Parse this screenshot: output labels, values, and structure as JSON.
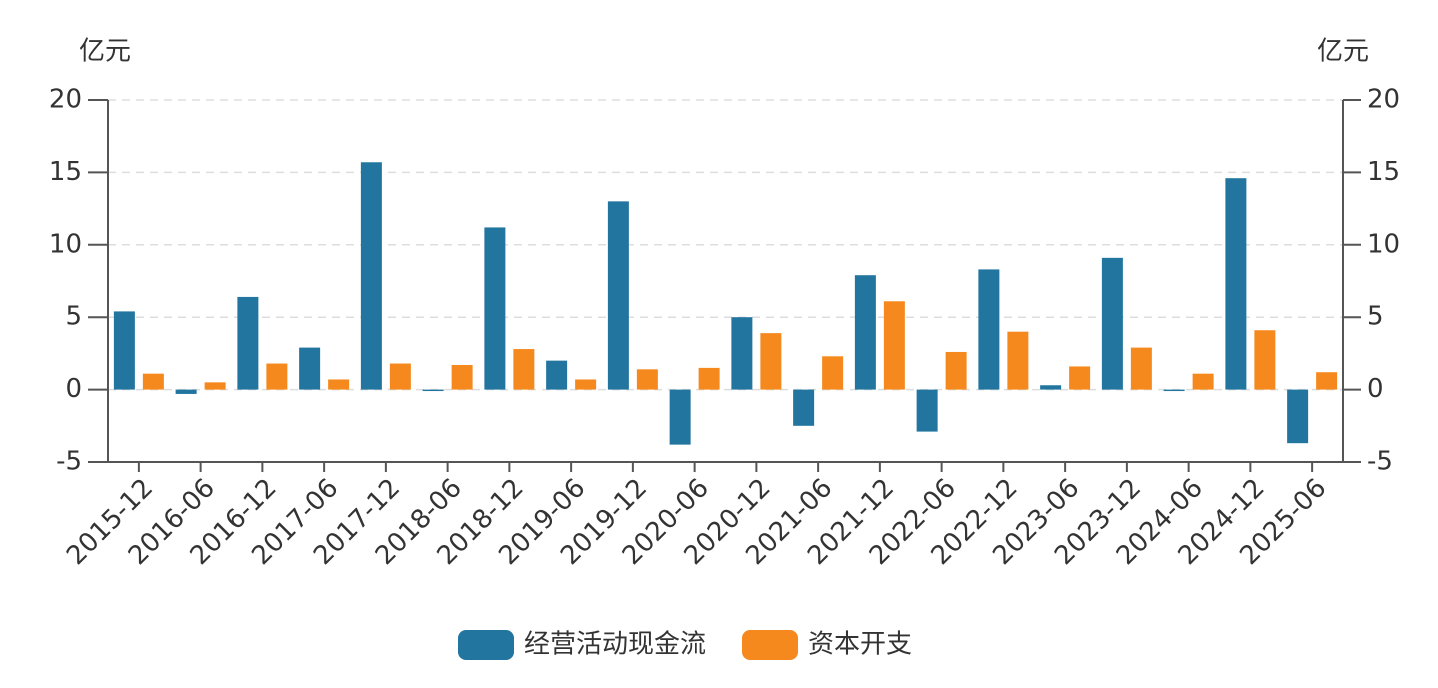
{
  "chart_data": {
    "type": "bar",
    "y_label": "亿元",
    "y2_label": "亿元",
    "categories": [
      "2015-12",
      "2016-06",
      "2016-12",
      "2017-06",
      "2017-12",
      "2018-06",
      "2018-12",
      "2019-06",
      "2019-12",
      "2020-06",
      "2020-12",
      "2021-06",
      "2021-12",
      "2022-06",
      "2022-12",
      "2023-06",
      "2023-12",
      "2024-06",
      "2024-12",
      "2025-06"
    ],
    "series": [
      {
        "name": "经营活动现金流",
        "color": "#21759f",
        "values": [
          5.4,
          -0.3,
          6.4,
          2.9,
          15.7,
          -0.1,
          11.2,
          2.0,
          13.0,
          -3.8,
          5.0,
          -2.5,
          7.9,
          -2.9,
          8.3,
          0.3,
          9.1,
          -0.1,
          14.6,
          -3.7
        ]
      },
      {
        "name": "资本开支",
        "color": "#f5891e",
        "axis": "y2",
        "values": [
          1.1,
          0.5,
          1.8,
          0.7,
          1.8,
          1.7,
          2.8,
          0.7,
          1.4,
          1.5,
          3.9,
          2.3,
          6.1,
          2.6,
          4.0,
          1.6,
          2.9,
          1.1,
          4.1,
          1.2
        ]
      }
    ],
    "ylim": [
      -5,
      20
    ],
    "yticks": [
      -5,
      0,
      5,
      10,
      15,
      20
    ],
    "y2lim": [
      -5,
      20
    ],
    "y2ticks": [
      -5,
      0,
      5,
      10,
      15,
      20
    ],
    "grid": true,
    "legend": "bottom"
  }
}
